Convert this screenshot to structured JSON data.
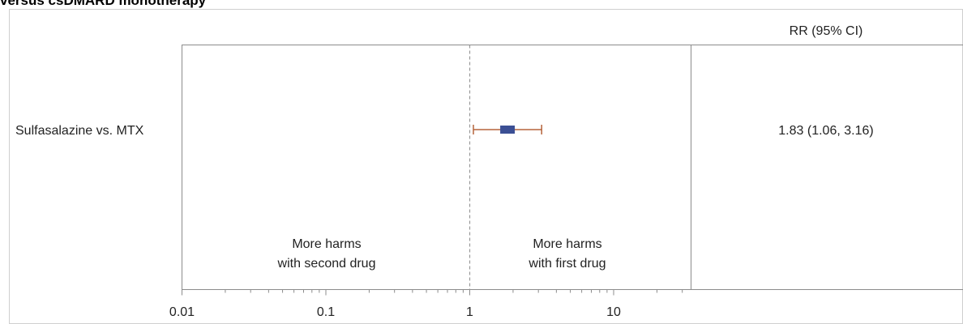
{
  "figure": {
    "title": "versus csDMARD monotherapy"
  },
  "chart_data": {
    "type": "forest",
    "column_header": "RR (95% CI)",
    "rows": [
      {
        "label": "Sulfasalazine vs. MTX",
        "rr": 1.83,
        "ci_low": 1.06,
        "ci_high": 3.16,
        "text": "1.83 (1.06, 3.16)"
      }
    ],
    "x_scale": "log",
    "x_range": [
      0.01,
      35
    ],
    "x_ticks": [
      {
        "value": 0.01,
        "label": "0.01"
      },
      {
        "value": 0.1,
        "label": "0.1"
      },
      {
        "value": 1,
        "label": "1"
      },
      {
        "value": 10,
        "label": "10"
      }
    ],
    "reference_line": 1,
    "region_labels": {
      "left_line1": "More harms",
      "left_line2": "with second drug",
      "right_line1": "More harms",
      "right_line2": "with first drug"
    },
    "colors": {
      "marker": "#3b4f94",
      "ci_line": "#b5643c",
      "reference": "#999999",
      "frame": "#8c8c8c"
    }
  }
}
